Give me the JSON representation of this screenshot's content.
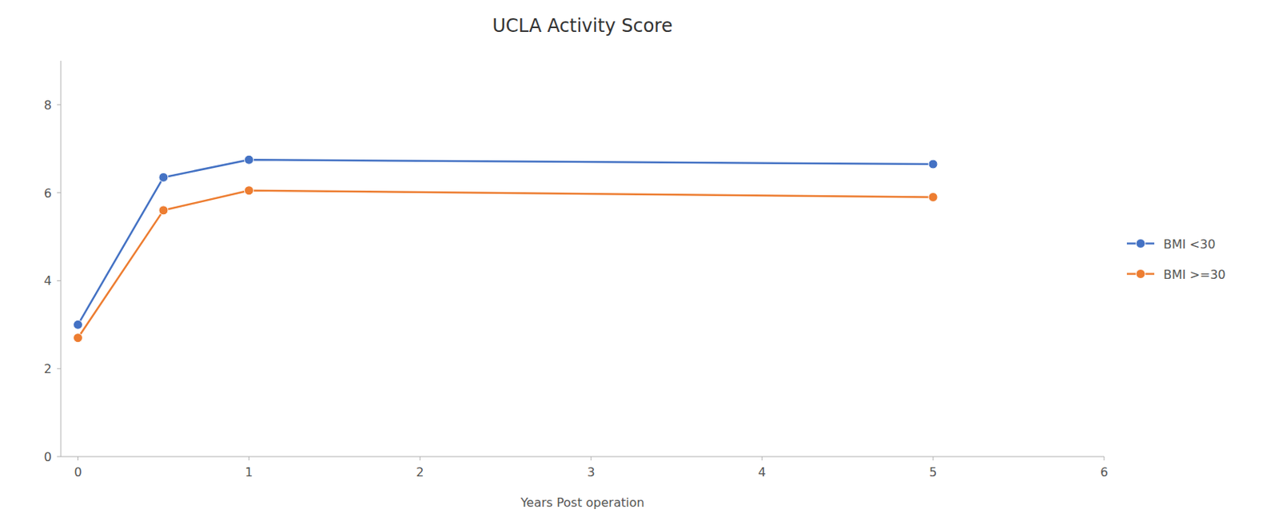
{
  "chart_data": {
    "type": "line",
    "title": "UCLA Activity Score",
    "xlabel": "Years Post operation",
    "x": [
      0,
      0.5,
      1,
      5
    ],
    "series": [
      {
        "name": "BMI <30",
        "color": "#4472C4",
        "marker": "circle",
        "values": [
          3.0,
          6.35,
          6.75,
          6.65
        ]
      },
      {
        "name": "BMI >=30",
        "color": "#ED7D31",
        "marker": "circle",
        "values": [
          2.7,
          5.6,
          6.05,
          5.9
        ]
      }
    ],
    "xlim": [
      -0.1,
      6
    ],
    "ylim": [
      0,
      9
    ],
    "xticks": [
      0,
      1,
      2,
      3,
      4,
      5,
      6
    ],
    "yticks": [
      0,
      2,
      4,
      6,
      8
    ],
    "grid": false,
    "legend": "right"
  }
}
